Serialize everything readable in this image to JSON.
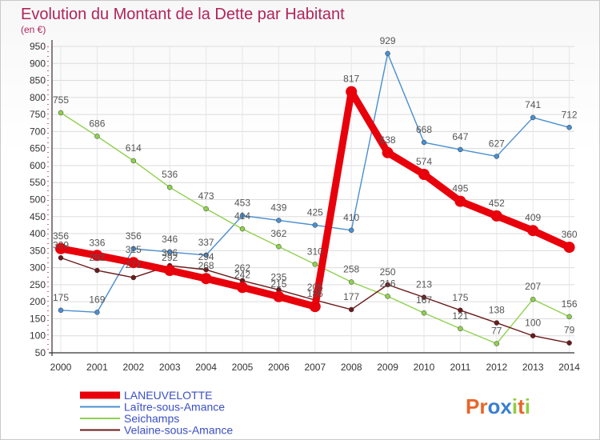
{
  "chart_data": {
    "type": "line",
    "title": "Evolution du Montant de la Dette par Habitant",
    "subtitle": "(en €)",
    "x": [
      "2000",
      "2001",
      "2002",
      "2003",
      "2004",
      "2005",
      "2006",
      "2007",
      "2008",
      "2009",
      "2010",
      "2011",
      "2012",
      "2013",
      "2014"
    ],
    "ylim": [
      50,
      950
    ],
    "yticks": [
      50,
      100,
      150,
      200,
      250,
      300,
      350,
      400,
      450,
      500,
      550,
      600,
      650,
      700,
      750,
      800,
      850,
      900,
      950
    ],
    "grid": true,
    "legend_position": "bottom-left",
    "series": [
      {
        "name": "LANEUVELOTTE",
        "color": "#e8000b",
        "values": [
          356,
          336,
          315,
          292,
          268,
          242,
          215,
          186,
          817,
          638,
          574,
          495,
          452,
          409,
          360
        ]
      },
      {
        "name": "Laître-sous-Amance",
        "color": "#4a8fcf",
        "values": [
          175,
          169,
          356,
          346,
          337,
          453,
          439,
          425,
          410,
          929,
          668,
          647,
          627,
          741,
          712
        ]
      },
      {
        "name": "Seichamps",
        "color": "#8fd14f",
        "values": [
          755,
          686,
          614,
          536,
          473,
          414,
          362,
          310,
          258,
          216,
          167,
          121,
          77,
          207,
          156
        ]
      },
      {
        "name": "Velaine-sous-Amance",
        "color": "#6b1a1a",
        "values": [
          329,
          292,
          271,
          306,
          294,
          262,
          235,
          205,
          177,
          250,
          213,
          175,
          138,
          100,
          79
        ]
      }
    ]
  },
  "logo": {
    "text": "Proxiti"
  }
}
